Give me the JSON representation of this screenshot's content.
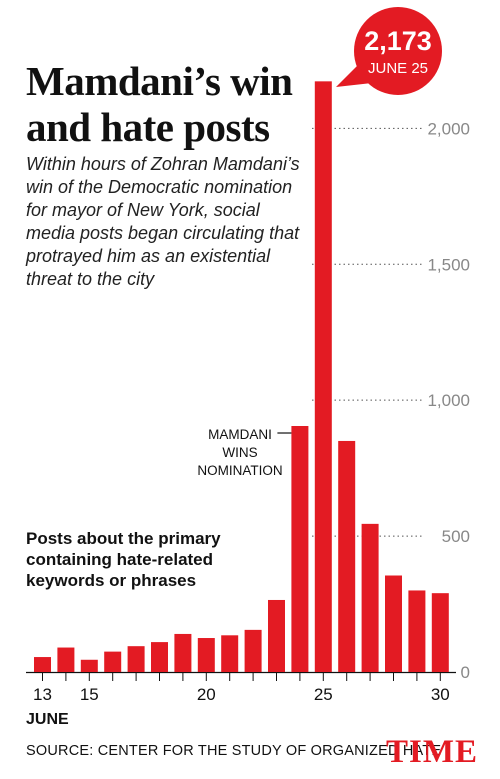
{
  "chart_data": {
    "type": "bar",
    "title": "Mamdani’s win and hate posts",
    "subtitle": "Within hours of Zohran Mamdani’s win of the Democratic nomination for mayor of New York, social media posts began circulating that protrayed him as an existential threat to the city",
    "description": "Posts about the primary containing hate-related keywords or phrases",
    "x": [
      13,
      14,
      15,
      16,
      17,
      18,
      19,
      20,
      21,
      22,
      23,
      24,
      25,
      26,
      27,
      28,
      29,
      30
    ],
    "values": [
      55,
      90,
      45,
      75,
      95,
      110,
      140,
      125,
      135,
      155,
      265,
      905,
      2173,
      850,
      545,
      355,
      300,
      290
    ],
    "x_ticks": [
      13,
      15,
      20,
      25,
      30
    ],
    "x_tick_labels": [
      "13",
      "15",
      "20",
      "25",
      "30"
    ],
    "xlabel": "JUNE",
    "y_ticks": [
      0,
      500,
      1000,
      1500,
      2000
    ],
    "y_tick_labels": [
      "0",
      "500",
      "1,000",
      "1,500",
      "2,000"
    ],
    "ylim": [
      0,
      2200
    ],
    "bar_color": "#e31b23",
    "annotations": [
      {
        "x": 24,
        "lines": [
          "MAMDANI",
          "WINS",
          "NOMINATION"
        ]
      },
      {
        "x": 25,
        "value_label": "2,173",
        "date_label": "JUNE 25",
        "style": "red-bubble"
      }
    ],
    "source": "SOURCE: CENTER FOR THE STUDY OF ORGANIZED HATE",
    "publisher": "TIME"
  }
}
